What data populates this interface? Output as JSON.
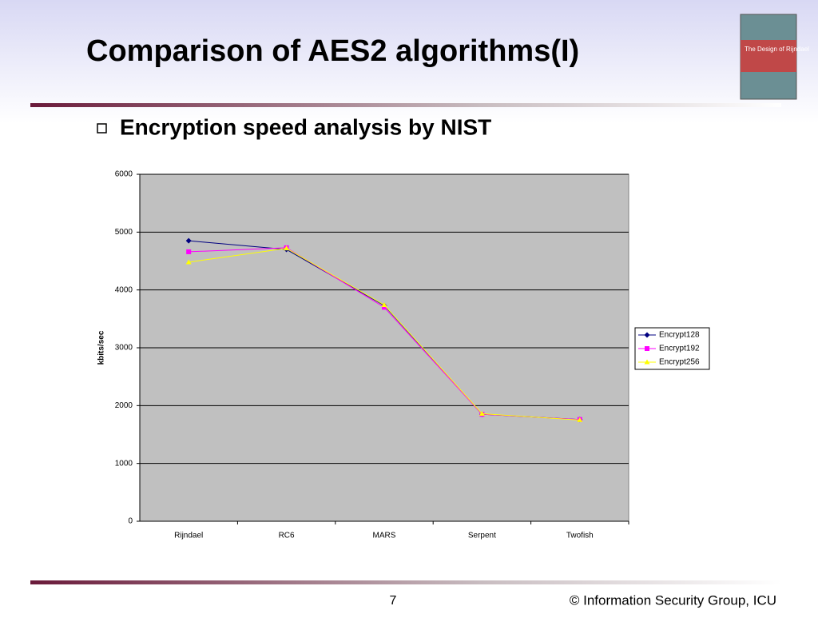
{
  "slide": {
    "title": "Comparison of AES2 algorithms(I)",
    "bullet": "Encryption speed analysis by NIST",
    "book_title": "The Design of Rijndael",
    "page_number": "7",
    "footer": "© Information Security Group, ICU"
  },
  "chart_data": {
    "type": "line",
    "y_label": "kbits/sec",
    "categories": [
      "Rijndael",
      "RC6",
      "MARS",
      "Serpent",
      "Twofish"
    ],
    "series": [
      {
        "name": "Encrypt128",
        "color": "#000080",
        "marker": "diamond",
        "values": [
          4850,
          4700,
          3730,
          1850,
          1760
        ]
      },
      {
        "name": "Encrypt192",
        "color": "#ff00ff",
        "marker": "square",
        "values": [
          4660,
          4730,
          3700,
          1850,
          1760
        ]
      },
      {
        "name": "Encrypt256",
        "color": "#ffff00",
        "marker": "triangle",
        "values": [
          4480,
          4720,
          3740,
          1860,
          1750
        ]
      }
    ],
    "ylim": [
      0,
      6000
    ],
    "yticks": [
      0,
      1000,
      2000,
      3000,
      4000,
      5000,
      6000
    ],
    "grid": true,
    "legend": "right",
    "plot_background": "#c0c0c0"
  }
}
